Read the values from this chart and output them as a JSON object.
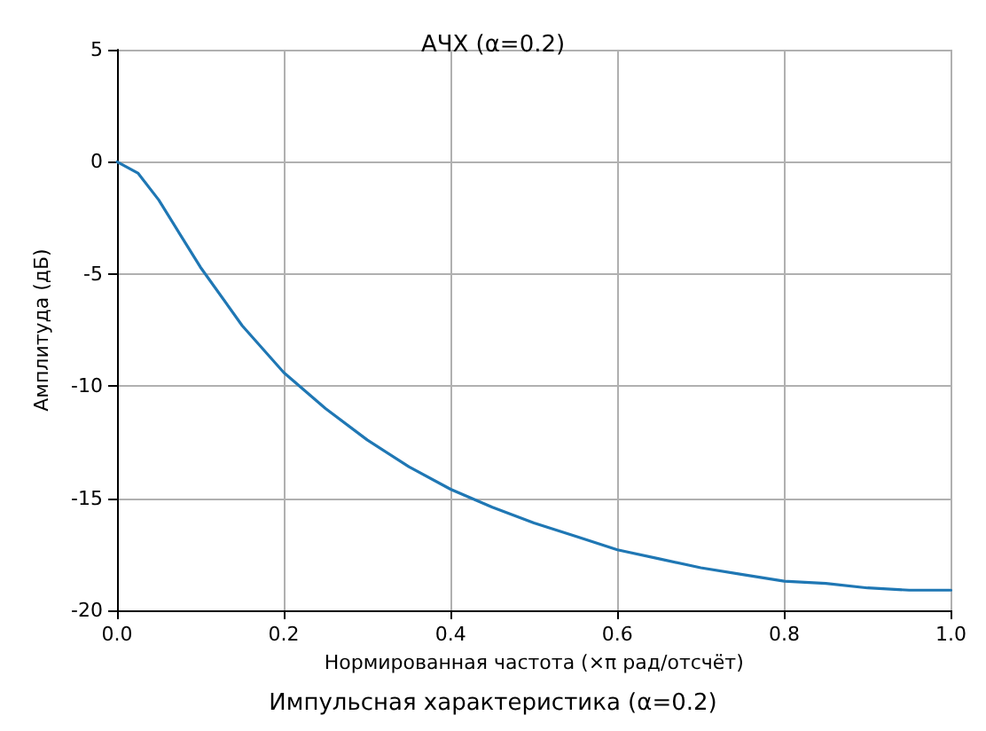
{
  "chart_data": {
    "type": "line",
    "title": "АЧХ (α=0.2)",
    "xlabel": "Нормированная частота (×π рад/отсчёт)",
    "ylabel": "Амплитуда (дБ)",
    "annotations": [
      "Импульсная характеристика (α=0.2)"
    ],
    "x": [
      0,
      0.025,
      0.05,
      0.075,
      0.1,
      0.15,
      0.2,
      0.25,
      0.3,
      0.35,
      0.4,
      0.45,
      0.5,
      0.55,
      0.6,
      0.65,
      0.7,
      0.75,
      0.8,
      0.85,
      0.9,
      0.95,
      1
    ],
    "series": [
      {
        "color": "#1f77b4",
        "values": [
          0,
          -0.5,
          -1.7,
          -3.2,
          -4.7,
          -7.3,
          -9.4,
          -11,
          -12.4,
          -13.6,
          -14.6,
          -15.4,
          -16.1,
          -16.7,
          -17.3,
          -17.7,
          -18.1,
          -18.4,
          -18.7,
          -18.8,
          -19,
          -19.1,
          -19.1
        ]
      }
    ],
    "xlim": [
      0,
      1
    ],
    "xticks": [
      {
        "value": 0,
        "label": "0.0"
      },
      {
        "value": 0.2,
        "label": "0.2"
      },
      {
        "value": 0.4,
        "label": "0.4"
      },
      {
        "value": 0.6,
        "label": "0.6"
      },
      {
        "value": 0.8,
        "label": "0.8"
      },
      {
        "value": 1,
        "label": "1.0"
      }
    ],
    "ylim": [
      -20,
      5
    ],
    "yticks": [
      -20,
      -15,
      -10,
      -5,
      0,
      5
    ],
    "grid": true,
    "marker": "none",
    "line_style": "solid"
  }
}
